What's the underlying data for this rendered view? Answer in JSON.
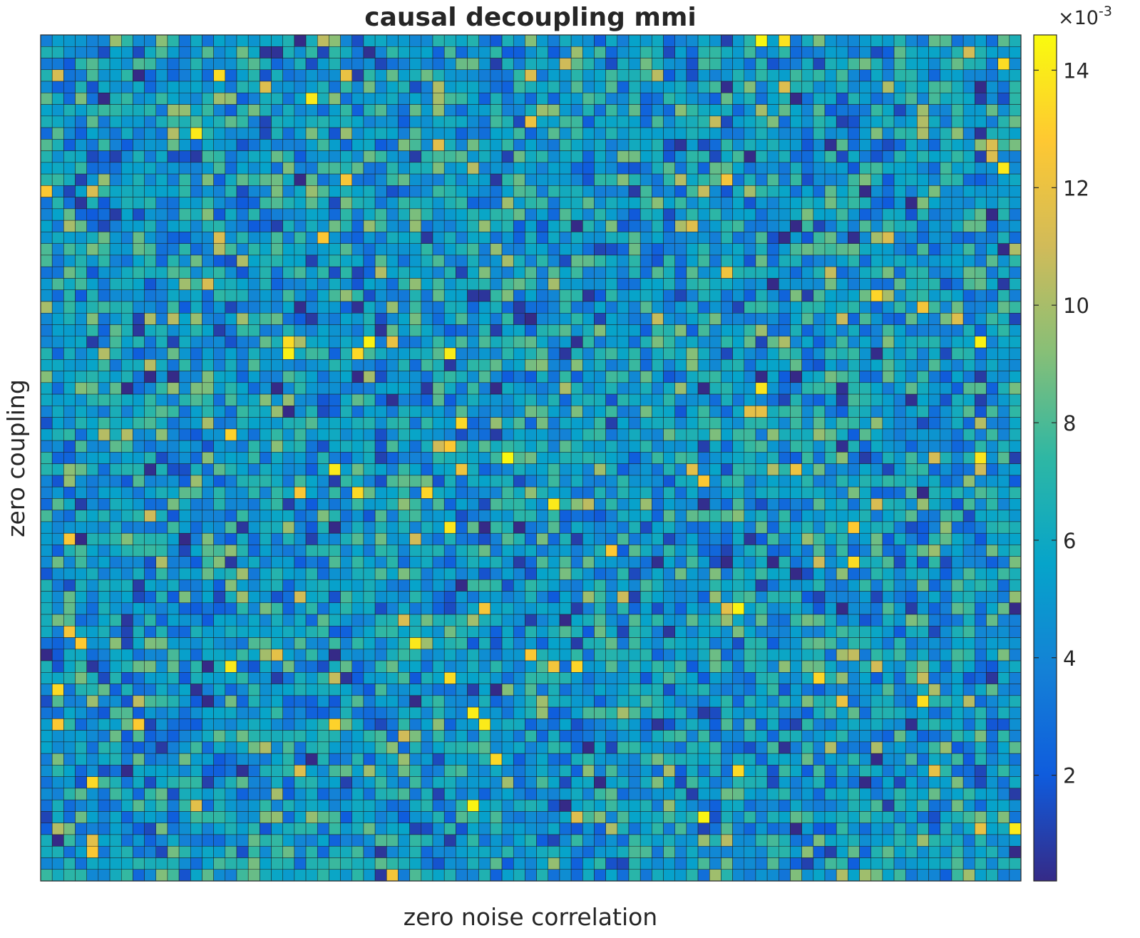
{
  "chart_data": {
    "type": "heatmap",
    "title": "causal decoupling mmi",
    "xlabel": "zero noise correlation",
    "ylabel": "zero coupling",
    "grid": {
      "rows": 73,
      "cols": 85,
      "generator": "pseudo-random field approximating the noisy heatmap",
      "seed": 1337,
      "value_range": [
        0.0002,
        0.0146
      ],
      "typical_mean": 0.0052,
      "typical_spread": 0.0021
    },
    "colorbar": {
      "scale_label": "×10",
      "scale_exponent": "-3",
      "ticks": [
        2,
        4,
        6,
        8,
        10,
        12,
        14
      ],
      "range": [
        0.2,
        14.6
      ],
      "colormap": "parula",
      "colormap_stops": [
        "#352A87",
        "#0F5CDD",
        "#1481D6",
        "#06A4CA",
        "#2EB7A4",
        "#87BF77",
        "#D1BB59",
        "#FEC832",
        "#F9FB0E"
      ]
    },
    "axes": {
      "xticks": [],
      "yticks": [],
      "box": true
    }
  }
}
